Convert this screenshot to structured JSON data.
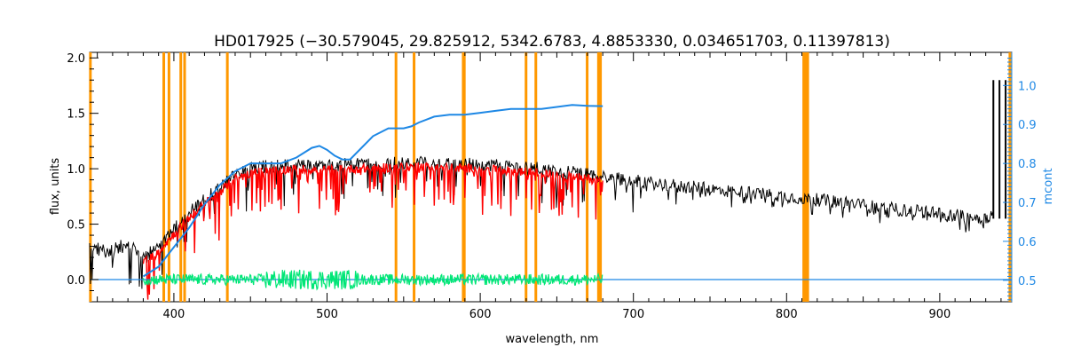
{
  "chart_data": {
    "type": "line",
    "title": "HD017925   (−30.579045, 29.825912, 5342.6783, 4.8853330, 0.034651703, 0.11397813)",
    "xlabel": "wavelength, nm",
    "ylabel": "flux, units",
    "y2label": "mcont",
    "xlim": [
      345,
      947
    ],
    "ylim": [
      -0.2,
      2.05
    ],
    "y2lim": [
      0.445,
      1.085
    ],
    "x_ticks": [
      400,
      500,
      600,
      700,
      800,
      900
    ],
    "y_ticks": [
      0.0,
      0.5,
      1.0,
      1.5,
      2.0
    ],
    "y2_ticks": [
      0.5,
      0.6,
      0.7,
      0.8,
      0.9,
      1.0
    ],
    "x_tick_labels": [
      "400",
      "500",
      "600",
      "700",
      "800",
      "900"
    ],
    "y_tick_labels": [
      "0.0",
      "0.5",
      "1.0",
      "1.5",
      "2.0"
    ],
    "y2_tick_labels": [
      "0.5",
      "0.6",
      "0.7",
      "0.8",
      "0.9",
      "1.0"
    ],
    "grid": false,
    "colors": {
      "observed": "#000000",
      "model": "#ff0000",
      "residual": "#00e676",
      "continuum": "#1e88e5",
      "mask": "#ff9800",
      "axis2": "#1e88e5"
    },
    "mask_lines": [
      345.5,
      393.4,
      396.8,
      404.5,
      407.0,
      434.9,
      545.0,
      556.8,
      588.9,
      589.6,
      629.9,
      636.3,
      669.8,
      677.2,
      678.5,
      811.2,
      812.4,
      813.8,
      945.8
    ],
    "continuum_curve": {
      "x": [
        380,
        390,
        400,
        410,
        420,
        430,
        440,
        450,
        460,
        470,
        480,
        490,
        495,
        500,
        505,
        510,
        515,
        520,
        530,
        540,
        545,
        550,
        555,
        560,
        570,
        580,
        590,
        600,
        610,
        620,
        630,
        640,
        650,
        660,
        670,
        680
      ],
      "y": [
        0.51,
        0.535,
        0.585,
        0.635,
        0.695,
        0.745,
        0.78,
        0.8,
        0.8,
        0.8,
        0.815,
        0.84,
        0.845,
        0.835,
        0.82,
        0.81,
        0.81,
        0.83,
        0.87,
        0.89,
        0.89,
        0.89,
        0.895,
        0.905,
        0.92,
        0.925,
        0.925,
        0.93,
        0.935,
        0.94,
        0.94,
        0.94,
        0.945,
        0.95,
        0.948,
        0.947
      ]
    },
    "observed_envelope": {
      "x": [
        345,
        355,
        365,
        375,
        380,
        385,
        390,
        400,
        410,
        420,
        430,
        440,
        450,
        460,
        470,
        480,
        490,
        500,
        520,
        540,
        560,
        580,
        600,
        620,
        640,
        660,
        680,
        700,
        720,
        740,
        760,
        780,
        800,
        820,
        840,
        860,
        880,
        900,
        920,
        930,
        935
      ],
      "y": [
        0.3,
        0.25,
        0.3,
        0.28,
        0.2,
        0.25,
        0.3,
        0.45,
        0.6,
        0.72,
        0.83,
        0.95,
        1.0,
        1.02,
        1.03,
        1.04,
        1.03,
        1.03,
        1.04,
        1.05,
        1.06,
        1.05,
        1.04,
        1.02,
        1.0,
        0.97,
        0.93,
        0.89,
        0.86,
        0.83,
        0.8,
        0.78,
        0.75,
        0.72,
        0.69,
        0.65,
        0.62,
        0.6,
        0.56,
        0.55,
        0.6
      ]
    },
    "observed_spike_x": [
      935,
      939,
      943
    ],
    "residual_band": [
      380,
      680
    ]
  }
}
